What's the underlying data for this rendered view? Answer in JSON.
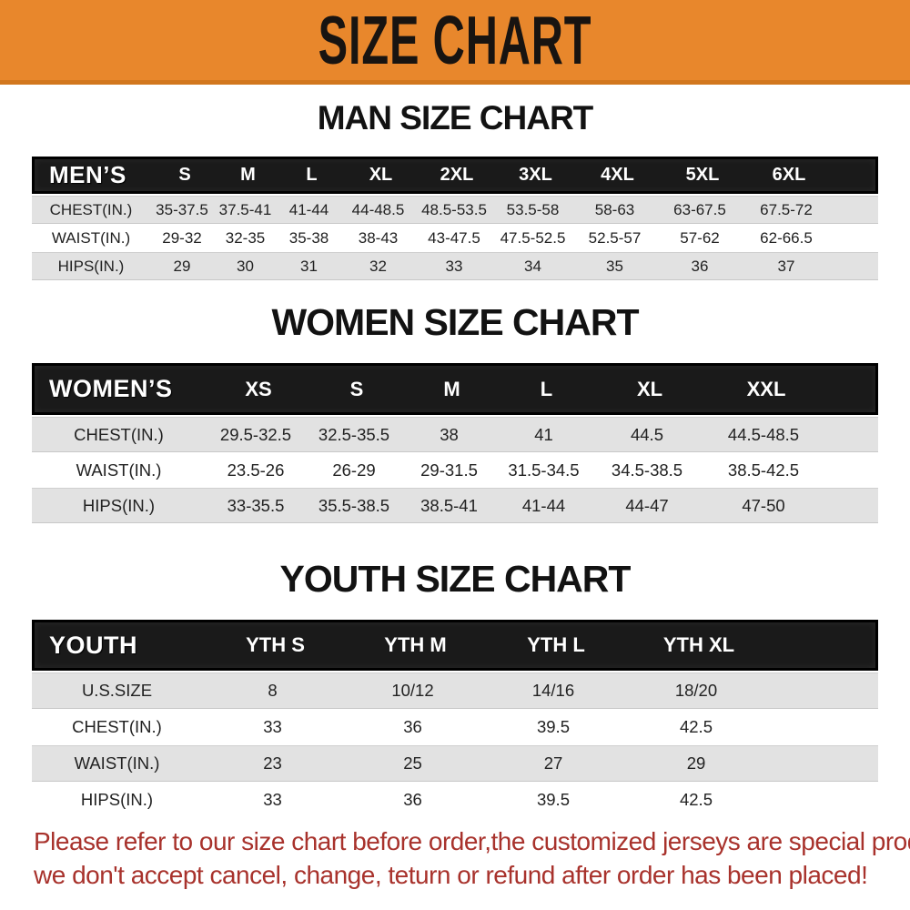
{
  "banner": {
    "title": "SIZE CHART",
    "bg_color": "#E8872C",
    "border_color": "#D2771E",
    "text_color": "#181411"
  },
  "chart_data": [
    {
      "type": "table",
      "title": "MAN SIZE CHART",
      "row_header": "MEN’S",
      "columns": [
        "S",
        "M",
        "L",
        "XL",
        "2XL",
        "3XL",
        "4XL",
        "5XL",
        "6XL"
      ],
      "rows": [
        {
          "label": "CHEST(IN.)",
          "values": [
            "35-37.5",
            "37.5-41",
            "41-44",
            "44-48.5",
            "48.5-53.5",
            "53.5-58",
            "58-63",
            "63-67.5",
            "67.5-72"
          ]
        },
        {
          "label": "WAIST(IN.)",
          "values": [
            "29-32",
            "32-35",
            "35-38",
            "38-43",
            "43-47.5",
            "47.5-52.5",
            "52.5-57",
            "57-62",
            "62-66.5"
          ]
        },
        {
          "label": "HIPS(IN.)",
          "values": [
            "29",
            "30",
            "31",
            "32",
            "33",
            "34",
            "35",
            "36",
            "37"
          ]
        }
      ]
    },
    {
      "type": "table",
      "title": "WOMEN SIZE CHART",
      "row_header": "WOMEN’S",
      "columns": [
        "XS",
        "S",
        "M",
        "L",
        "XL",
        "XXL"
      ],
      "rows": [
        {
          "label": "CHEST(IN.)",
          "values": [
            "29.5-32.5",
            "32.5-35.5",
            "38",
            "41",
            "44.5",
            "44.5-48.5"
          ]
        },
        {
          "label": "WAIST(IN.)",
          "values": [
            "23.5-26",
            "26-29",
            "29-31.5",
            "31.5-34.5",
            "34.5-38.5",
            "38.5-42.5"
          ]
        },
        {
          "label": "HIPS(IN.)",
          "values": [
            "33-35.5",
            "35.5-38.5",
            "38.5-41",
            "41-44",
            "44-47",
            "47-50"
          ]
        }
      ]
    },
    {
      "type": "table",
      "title": "YOUTH SIZE CHART",
      "row_header": "YOUTH",
      "columns": [
        "YTH S",
        "YTH M",
        "YTH L",
        "YTH XL"
      ],
      "rows": [
        {
          "label": "U.S.SIZE",
          "values": [
            "8",
            "10/12",
            "14/16",
            "18/20"
          ]
        },
        {
          "label": "CHEST(IN.)",
          "values": [
            "33",
            "36",
            "39.5",
            "42.5"
          ]
        },
        {
          "label": "WAIST(IN.)",
          "values": [
            "23",
            "25",
            "27",
            "29"
          ]
        },
        {
          "label": "HIPS(IN.)",
          "values": [
            "33",
            "36",
            "39.5",
            "42.5"
          ]
        }
      ]
    }
  ],
  "footer": {
    "line1": "Please refer to our size chart before order,the customized jerseys are special products,",
    "line2": "we don't accept cancel, change, teturn or refund after order has been placed!",
    "text_color": "#A8322C"
  },
  "colors": {
    "table_header_bg": "#1A1A1A",
    "table_header_text": "#FFFFFF",
    "row_alt_bg": "#E2E2E2"
  }
}
